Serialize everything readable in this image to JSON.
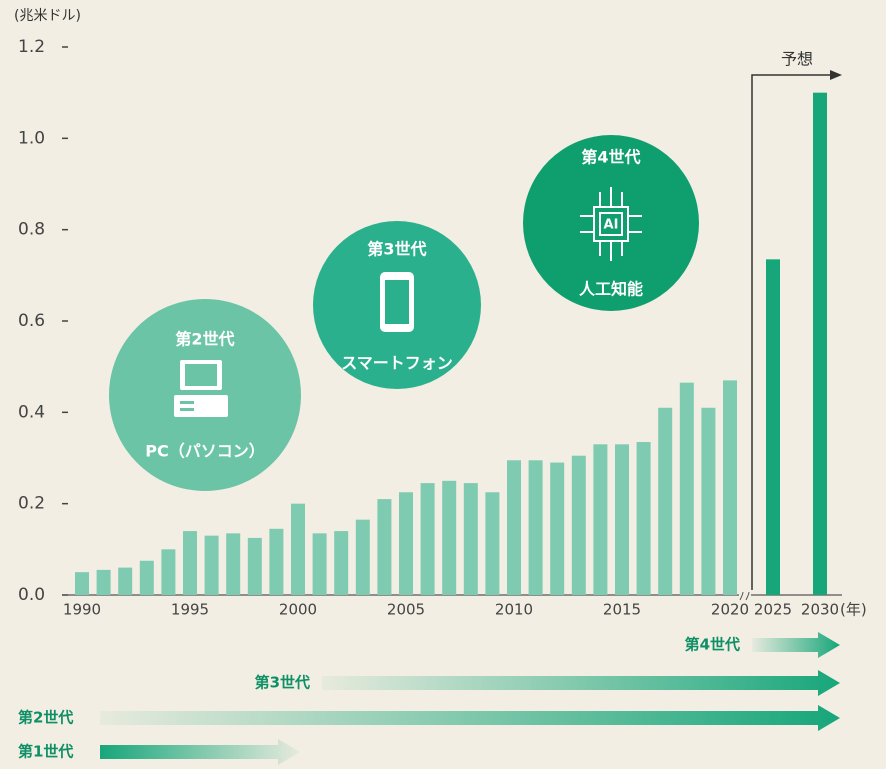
{
  "chart_data": {
    "type": "bar",
    "y_label": "(兆米ドル)",
    "x_label": "(年)",
    "annotation": "予想",
    "categories": [
      "1990",
      null,
      null,
      null,
      null,
      "1995",
      null,
      null,
      null,
      null,
      "2000",
      null,
      null,
      null,
      null,
      "2005",
      null,
      null,
      null,
      null,
      "2010",
      null,
      null,
      null,
      null,
      "2015",
      null,
      null,
      null,
      null,
      "2020",
      "2025",
      "2030"
    ],
    "values": [
      0.05,
      0.055,
      0.06,
      0.075,
      0.1,
      0.14,
      0.13,
      0.135,
      0.125,
      0.145,
      0.2,
      0.135,
      0.14,
      0.165,
      0.21,
      0.225,
      0.245,
      0.25,
      0.245,
      0.225,
      0.295,
      0.295,
      0.29,
      0.305,
      0.33,
      0.33,
      0.335,
      0.41,
      0.465,
      0.41,
      0.47,
      0.735,
      1.1
    ],
    "bar_colors": [
      "#7fcbb1",
      "#7fcbb1",
      "#7fcbb1",
      "#7fcbb1",
      "#7fcbb1",
      "#7fcbb1",
      "#7fcbb1",
      "#7fcbb1",
      "#7fcbb1",
      "#7fcbb1",
      "#7fcbb1",
      "#7fcbb1",
      "#7fcbb1",
      "#7fcbb1",
      "#7fcbb1",
      "#7fcbb1",
      "#7fcbb1",
      "#7fcbb1",
      "#7fcbb1",
      "#7fcbb1",
      "#7fcbb1",
      "#7fcbb1",
      "#7fcbb1",
      "#7fcbb1",
      "#7fcbb1",
      "#7fcbb1",
      "#7fcbb1",
      "#7fcbb1",
      "#7fcbb1",
      "#7fcbb1",
      "#7fcbb1",
      "#17a67a",
      "#17a67a"
    ],
    "ylim": [
      0,
      1.2
    ],
    "yticks": [
      {
        "value": 0,
        "label": "0.0"
      },
      0.2,
      0.4,
      0.6,
      0.8,
      {
        "value": 1,
        "label": "1.0"
      },
      1.2
    ]
  },
  "circles": [
    {
      "generation": "第2世代",
      "label": "PC（パソコン）"
    },
    {
      "generation": "第3世代",
      "label": "スマートフォン"
    },
    {
      "generation": "第4世代",
      "label": "人工知能"
    }
  ],
  "eras": [
    "第4世代",
    "第3世代",
    "第2世代",
    "第1世代"
  ]
}
